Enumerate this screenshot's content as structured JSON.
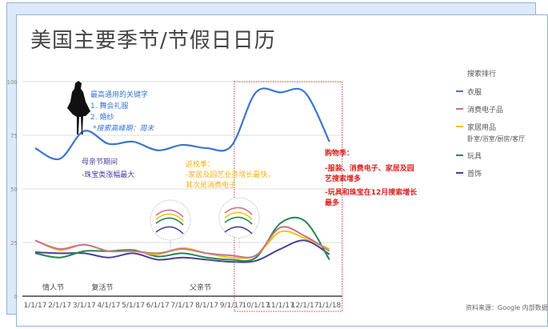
{
  "chart_data": {
    "type": "line",
    "title": "美国主要季节/节假日日历",
    "xlabel": "",
    "ylabel": "",
    "categories": [
      "1/1/17",
      "2/1/17",
      "3/1/17",
      "4/1/17",
      "5/1/17",
      "6/1/17",
      "7/1/17",
      "8/1/17",
      "9/1/17",
      "10/1/17",
      "11/1/17",
      "12/1/17",
      "1/1/18"
    ],
    "ylim": [
      0,
      100
    ],
    "yticks": [
      0,
      25,
      50,
      75,
      100
    ],
    "grid": true,
    "legend_title": "搜索排行",
    "legend_position": "right",
    "series": [
      {
        "name": "衣服",
        "color": "#3a75d0",
        "values": [
          69,
          64,
          77,
          71,
          72,
          68,
          70.5,
          69,
          70,
          95,
          95,
          95,
          72
        ]
      },
      {
        "name": "消费电子品",
        "color": "#c9738f",
        "values": [
          26,
          22,
          24,
          21,
          21,
          20,
          22,
          20,
          19,
          19,
          32,
          28,
          21
        ]
      },
      {
        "name": "家居用品",
        "sub": "卧室/浴室/厨房/客厅",
        "color": "#f0c419",
        "values": [
          26,
          21.5,
          24,
          21,
          21,
          19.5,
          22.5,
          20,
          18,
          19,
          30,
          27,
          22
        ]
      },
      {
        "name": "玩具",
        "color": "#1f8a4c",
        "values": [
          20,
          18,
          21,
          21,
          21.5,
          18.5,
          20,
          18,
          17,
          18,
          34,
          35,
          17
        ]
      },
      {
        "name": "首饰",
        "color": "#4b3e9c",
        "values": [
          20.5,
          20,
          20,
          18,
          20,
          17,
          18,
          17,
          16,
          16.5,
          22,
          26,
          19.5
        ]
      }
    ],
    "events": [
      {
        "label": "情人节",
        "x": "2/1/17"
      },
      {
        "label": "复活节",
        "x": "4/1/17"
      },
      {
        "label": "父亲节",
        "x": "8/1/17"
      }
    ],
    "highlight_range": [
      "10/1/17",
      "1/1/18"
    ],
    "annotations": {
      "keywords": {
        "color": "#3a75d0",
        "lines": [
          "最高通用的关键字",
          "1. 舞会礼服",
          "2. 婚纱",
          "*搜索高峰期：周末"
        ]
      },
      "mothers_day": {
        "color": "#4b3e9c",
        "lines": [
          "母亲节期间",
          "-珠宝类涨幅最大"
        ]
      },
      "back_to_school": {
        "color": "#f0b419",
        "lines": [
          "返校季：",
          "-家居及园艺业务增长最快，",
          "其次是消费电子"
        ]
      },
      "shopping": {
        "color": "#e02020",
        "lines": [
          "购物季：",
          "-服装、消费电子、家居及园",
          "艺搜索增多",
          "-玩具和珠宝在12月搜索增长",
          "最多"
        ]
      }
    },
    "source": "资料来源：Google 内部数据"
  }
}
